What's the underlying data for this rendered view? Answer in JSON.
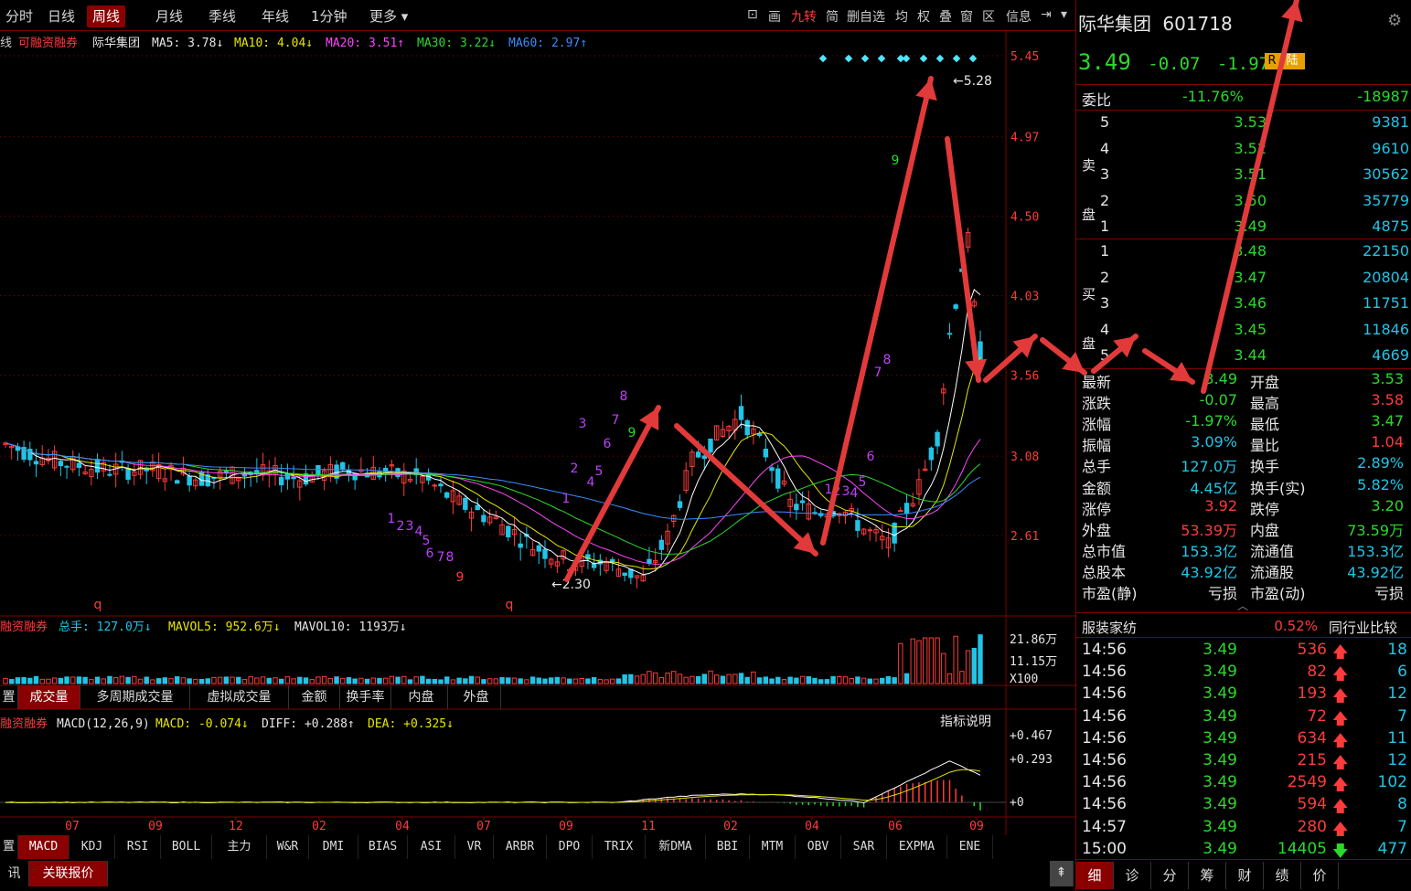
{
  "toolbar": {
    "tabs": [
      "分时",
      "日线",
      "周线",
      "月线",
      "季线",
      "年线",
      "1分钟",
      "更多"
    ],
    "active_tab": "周线",
    "tools": [
      "画",
      "九转",
      "简",
      "删自选",
      "均",
      "权",
      "叠",
      "窗",
      "区",
      "信息"
    ]
  },
  "chart": {
    "legend_prefix": "线",
    "margin_tag": "可融资融券",
    "stock_name": "际华集团",
    "ma5": "MA5: 3.78",
    "ma10": "MA10: 4.04",
    "ma20": "MA20: 3.51",
    "ma30": "MA30: 3.22",
    "ma60": "MA60: 2.97",
    "price_axis": [
      "5.45",
      "4.97",
      "4.50",
      "4.03",
      "3.56",
      "3.08",
      "2.61"
    ],
    "high_label": "5.28",
    "low_label": "2.30",
    "colors": {
      "up": "#ff3b3b",
      "down": "#21c4e6",
      "grid": "#800000",
      "arrow": "#e23a3a"
    }
  },
  "chart_data": {
    "type": "candlestick",
    "title": "际华集团 601718 周线",
    "y_axis": [
      5.45,
      4.97,
      4.5,
      4.03,
      3.56,
      3.08,
      2.61
    ],
    "x_ticks": [
      "07",
      "09",
      "12",
      "02",
      "04",
      "07",
      "09",
      "11",
      "02",
      "04",
      "06",
      "09"
    ],
    "high": 5.28,
    "low": 2.3,
    "moving_averages": [
      {
        "name": "MA5",
        "value": 3.78,
        "color": "#ffffff"
      },
      {
        "name": "MA10",
        "value": 4.04,
        "color": "#e6e600"
      },
      {
        "name": "MA20",
        "value": 3.51,
        "color": "#ff44ff"
      },
      {
        "name": "MA30",
        "value": 3.22,
        "color": "#2bd92b"
      },
      {
        "name": "MA60",
        "value": 2.97,
        "color": "#3a8cff"
      }
    ]
  },
  "volume": {
    "legend_tag": "融资融券",
    "total": "总手: 127.0万",
    "mavol5": "MAVOL5: 952.6万",
    "mavol10": "MAVOL10: 1193万",
    "axis": [
      "21.86万",
      "11.15万",
      "X100"
    ],
    "tabs": [
      "置",
      "成交量",
      "多周期成交量",
      "虚拟成交量",
      "金额",
      "换手率",
      "内盘",
      "外盘"
    ],
    "active_tab": "成交量"
  },
  "macd": {
    "legend_tag": "融资融券",
    "title": "MACD(12,26,9)",
    "macd": "MACD: -0.074",
    "diff": "DIFF: +0.288",
    "dea": "DEA: +0.325",
    "help": "指标说明",
    "axis": [
      "+0.467",
      "+0.293",
      "+0"
    ],
    "x_ticks": [
      "07",
      "09",
      "12",
      "02",
      "04",
      "07",
      "09",
      "11",
      "02",
      "04",
      "06",
      "09"
    ]
  },
  "indicator_tabs": [
    "置",
    "MACD",
    "KDJ",
    "RSI",
    "BOLL",
    "主力",
    "W&R",
    "DMI",
    "BIAS",
    "ASI",
    "VR",
    "ARBR",
    "DPO",
    "TRIX",
    "新DMA",
    "BBI",
    "MTM",
    "OBV",
    "SAR",
    "EXPMA",
    "ENE"
  ],
  "indicator_active": "MACD",
  "bottom_tabs": [
    "资讯",
    "关联报价"
  ],
  "quote": {
    "name": "际华集团",
    "code": "601718",
    "price": "3.49",
    "change": "-0.07",
    "pct": "-1.97%",
    "badge1": "R",
    "badge2": "陆",
    "weibi_label": "委比",
    "weibi_pct": "-11.76%",
    "weibi_val": "-18987",
    "sell_label": [
      "卖",
      "盘"
    ],
    "buy_label": [
      "买",
      "盘"
    ],
    "sell": [
      {
        "lvl": "5",
        "price": "3.53",
        "vol": "9381"
      },
      {
        "lvl": "4",
        "price": "3.52",
        "vol": "9610"
      },
      {
        "lvl": "3",
        "price": "3.51",
        "vol": "30562"
      },
      {
        "lvl": "2",
        "price": "3.50",
        "vol": "35779"
      },
      {
        "lvl": "1",
        "price": "3.49",
        "vol": "4875"
      }
    ],
    "buy": [
      {
        "lvl": "1",
        "price": "3.48",
        "vol": "22150"
      },
      {
        "lvl": "2",
        "price": "3.47",
        "vol": "20804"
      },
      {
        "lvl": "3",
        "price": "3.46",
        "vol": "11751"
      },
      {
        "lvl": "4",
        "price": "3.45",
        "vol": "11846"
      },
      {
        "lvl": "5",
        "price": "3.44",
        "vol": "4669"
      }
    ],
    "stats": [
      {
        "l1": "最新",
        "v1": "3.49",
        "c1": "green",
        "l2": "开盘",
        "v2": "3.53",
        "c2": "green"
      },
      {
        "l1": "涨跌",
        "v1": "-0.07",
        "c1": "green",
        "l2": "最高",
        "v2": "3.58",
        "c2": "red"
      },
      {
        "l1": "涨幅",
        "v1": "-1.97%",
        "c1": "green",
        "l2": "最低",
        "v2": "3.47",
        "c2": "green"
      },
      {
        "l1": "振幅",
        "v1": "3.09%",
        "c1": "cyan",
        "l2": "量比",
        "v2": "1.04",
        "c2": "red"
      },
      {
        "l1": "总手",
        "v1": "127.0万",
        "c1": "cyan",
        "l2": "换手",
        "v2": "2.89%",
        "c2": "cyan"
      },
      {
        "l1": "金额",
        "v1": "4.45亿",
        "c1": "cyan",
        "l2": "换手(实)",
        "v2": "5.82%",
        "c2": "cyan"
      },
      {
        "l1": "涨停",
        "v1": "3.92",
        "c1": "red",
        "l2": "跌停",
        "v2": "3.20",
        "c2": "green"
      },
      {
        "l1": "外盘",
        "v1": "53.39万",
        "c1": "red",
        "l2": "内盘",
        "v2": "73.59万",
        "c2": "green"
      },
      {
        "l1": "总市值",
        "v1": "153.3亿",
        "c1": "cyan",
        "l2": "流通值",
        "v2": "153.3亿",
        "c2": "cyan"
      },
      {
        "l1": "总股本",
        "v1": "43.92亿",
        "c1": "cyan",
        "l2": "流通股",
        "v2": "43.92亿",
        "c2": "cyan"
      },
      {
        "l1": "市盈(静)",
        "v1": "亏损",
        "c1": "white",
        "l2": "市盈(动)",
        "v2": "亏损",
        "c2": "white"
      }
    ],
    "industry": "服装家纺",
    "industry_pct": "0.52%",
    "industry_compare": "同行业比较",
    "ticks": [
      {
        "t": "14:56",
        "p": "3.49",
        "v": "536",
        "dir": "up",
        "n": "18"
      },
      {
        "t": "14:56",
        "p": "3.49",
        "v": "82",
        "dir": "up",
        "n": "6"
      },
      {
        "t": "14:56",
        "p": "3.49",
        "v": "193",
        "dir": "up",
        "n": "12"
      },
      {
        "t": "14:56",
        "p": "3.49",
        "v": "72",
        "dir": "up",
        "n": "7"
      },
      {
        "t": "14:56",
        "p": "3.49",
        "v": "634",
        "dir": "up",
        "n": "11"
      },
      {
        "t": "14:56",
        "p": "3.49",
        "v": "215",
        "dir": "up",
        "n": "12"
      },
      {
        "t": "14:56",
        "p": "3.49",
        "v": "2549",
        "dir": "up",
        "n": "102"
      },
      {
        "t": "14:56",
        "p": "3.49",
        "v": "594",
        "dir": "up",
        "n": "8"
      },
      {
        "t": "14:57",
        "p": "3.49",
        "v": "280",
        "dir": "up",
        "n": "7"
      },
      {
        "t": "15:00",
        "p": "3.49",
        "v": "14405",
        "dir": "down",
        "n": "477"
      }
    ],
    "panel_tabs": [
      "细",
      "诊",
      "分",
      "筹",
      "财",
      "绩",
      "价"
    ]
  }
}
